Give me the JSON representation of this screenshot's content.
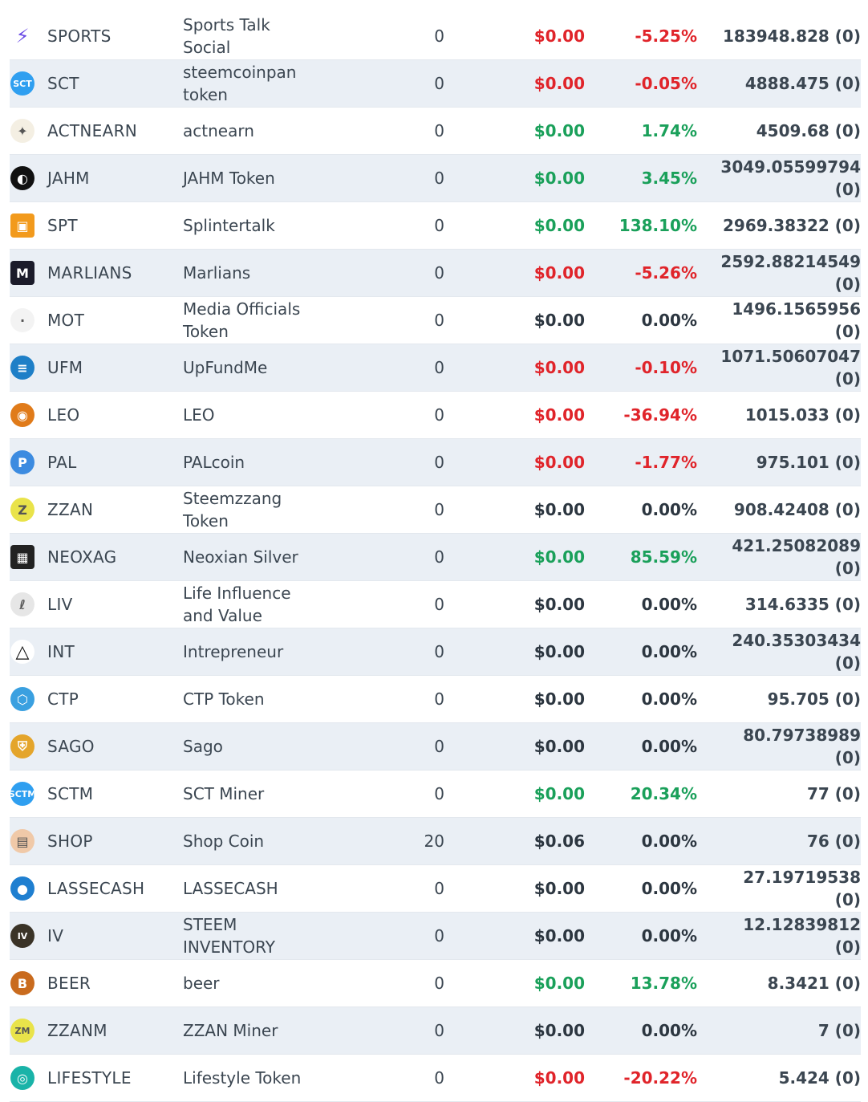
{
  "rows": [
    {
      "symbol": "SPORTS",
      "name": "Sports Talk Social",
      "balance": "0",
      "price": "$0.00",
      "change": "-5.25%",
      "trend": "down",
      "volume": "183948.828 (0)",
      "icon": "sports-lightning-icon",
      "color": "#6b4ce6"
    },
    {
      "symbol": "SCT",
      "name": "steemcoinpan token",
      "balance": "0",
      "price": "$0.00",
      "change": "-0.05%",
      "trend": "down",
      "volume": "4888.475 (0)",
      "icon": "sct-icon",
      "color": "#2f9ff0"
    },
    {
      "symbol": "ACTNEARN",
      "name": "actnearn",
      "balance": "0",
      "price": "$0.00",
      "change": "1.74%",
      "trend": "up",
      "volume": "4509.68 (0)",
      "icon": "actnearn-icon",
      "color": "#f4efe3"
    },
    {
      "symbol": "JAHM",
      "name": "JAHM Token",
      "balance": "0",
      "price": "$0.00",
      "change": "3.45%",
      "trend": "up",
      "volume": "3049.05599794 (0)",
      "icon": "jahm-icon",
      "color": "#111111"
    },
    {
      "symbol": "SPT",
      "name": "Splintertalk",
      "balance": "0",
      "price": "$0.00",
      "change": "138.10%",
      "trend": "up",
      "volume": "2969.38322 (0)",
      "icon": "splintertalk-icon",
      "color": "#f29a1c"
    },
    {
      "symbol": "MARLIANS",
      "name": "Marlians",
      "balance": "0",
      "price": "$0.00",
      "change": "-5.26%",
      "trend": "down",
      "volume": "2592.88214549 (0)",
      "icon": "marlians-icon",
      "color": "#1b1b2a"
    },
    {
      "symbol": "MOT",
      "name": "Media Officials Token",
      "balance": "0",
      "price": "$0.00",
      "change": "0.00%",
      "trend": "flat",
      "volume": "1496.1565956 (0)",
      "icon": "mot-icon",
      "color": "#f3f3f3"
    },
    {
      "symbol": "UFM",
      "name": "UpFundMe",
      "balance": "0",
      "price": "$0.00",
      "change": "-0.10%",
      "trend": "down",
      "volume": "1071.50607047 (0)",
      "icon": "upfundme-icon",
      "color": "#1e7fc7"
    },
    {
      "symbol": "LEO",
      "name": "LEO",
      "balance": "0",
      "price": "$0.00",
      "change": "-36.94%",
      "trend": "down",
      "volume": "1015.033 (0)",
      "icon": "leo-icon",
      "color": "#e07b1a"
    },
    {
      "symbol": "PAL",
      "name": "PALcoin",
      "balance": "0",
      "price": "$0.00",
      "change": "-1.77%",
      "trend": "down",
      "volume": "975.101 (0)",
      "icon": "palcoin-icon",
      "color": "#3c8be0"
    },
    {
      "symbol": "ZZAN",
      "name": "Steemzzang Token",
      "balance": "0",
      "price": "$0.00",
      "change": "0.00%",
      "trend": "flat",
      "volume": "908.42408 (0)",
      "icon": "zzan-icon",
      "color": "#e9e34a"
    },
    {
      "symbol": "NEOXAG",
      "name": "Neoxian Silver",
      "balance": "0",
      "price": "$0.00",
      "change": "85.59%",
      "trend": "up",
      "volume": "421.25082089 (0)",
      "icon": "neoxag-icon",
      "color": "#222222"
    },
    {
      "symbol": "LIV",
      "name": "Life Influence and Value",
      "balance": "0",
      "price": "$0.00",
      "change": "0.00%",
      "trend": "flat",
      "volume": "314.6335 (0)",
      "icon": "liv-icon",
      "color": "#e6e6e6"
    },
    {
      "symbol": "INT",
      "name": "Intrepreneur",
      "balance": "0",
      "price": "$0.00",
      "change": "0.00%",
      "trend": "flat",
      "volume": "240.35303434 (0)",
      "icon": "triangle-icon",
      "color": "#ffffff"
    },
    {
      "symbol": "CTP",
      "name": "CTP Token",
      "balance": "0",
      "price": "$0.00",
      "change": "0.00%",
      "trend": "flat",
      "volume": "95.705 (0)",
      "icon": "ctp-icon",
      "color": "#3aa0e0"
    },
    {
      "symbol": "SAGO",
      "name": "Sago",
      "balance": "0",
      "price": "$0.00",
      "change": "0.00%",
      "trend": "flat",
      "volume": "80.79738989 (0)",
      "icon": "sago-shield-icon",
      "color": "#e4a52b"
    },
    {
      "symbol": "SCTM",
      "name": "SCT Miner",
      "balance": "0",
      "price": "$0.00",
      "change": "20.34%",
      "trend": "up",
      "volume": "77 (0)",
      "icon": "sctm-icon",
      "color": "#2f9ff0"
    },
    {
      "symbol": "SHOP",
      "name": "Shop Coin",
      "balance": "20",
      "price": "$0.06",
      "change": "0.00%",
      "trend": "flat",
      "volume": "76 (0)",
      "icon": "shop-icon",
      "color": "#f0c9a8"
    },
    {
      "symbol": "LASSECASH",
      "name": "LASSECASH",
      "balance": "0",
      "price": "$0.00",
      "change": "0.00%",
      "trend": "flat",
      "volume": "27.19719538 (0)",
      "icon": "lassecash-icon",
      "color": "#1f7fd0"
    },
    {
      "symbol": "IV",
      "name": "STEEM INVENTORY",
      "balance": "0",
      "price": "$0.00",
      "change": "0.00%",
      "trend": "flat",
      "volume": "12.12839812 (0)",
      "icon": "iv-icon",
      "color": "#3a3327"
    },
    {
      "symbol": "BEER",
      "name": "beer",
      "balance": "0",
      "price": "$0.00",
      "change": "13.78%",
      "trend": "up",
      "volume": "8.3421 (0)",
      "icon": "beer-icon",
      "color": "#c96b1e"
    },
    {
      "symbol": "ZZANM",
      "name": "ZZAN Miner",
      "balance": "0",
      "price": "$0.00",
      "change": "0.00%",
      "trend": "flat",
      "volume": "7 (0)",
      "icon": "zzanm-icon",
      "color": "#e9e34a"
    },
    {
      "symbol": "LIFESTYLE",
      "name": "Lifestyle Token",
      "balance": "0",
      "price": "$0.00",
      "change": "-20.22%",
      "trend": "down",
      "volume": "5.424 (0)",
      "icon": "lifestyle-icon",
      "color": "#19b3a8"
    }
  ]
}
